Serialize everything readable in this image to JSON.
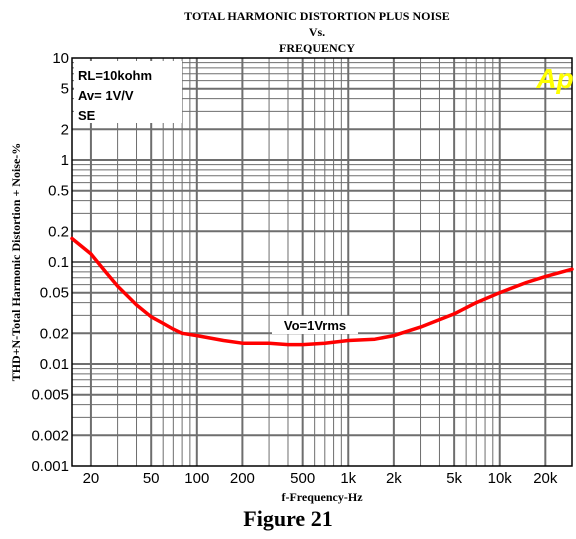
{
  "chart_data": {
    "type": "line",
    "title_lines": [
      "TOTAL HARMONIC DISTORTION PLUS NOISE",
      "Vs.",
      "FREQUENCY"
    ],
    "xlabel": "f-Frequency-Hz",
    "ylabel": "THD+N-Total Harmonic Distortion + Noise-%",
    "x_scale": "log",
    "y_scale": "log",
    "xlim": [
      15,
      30000
    ],
    "ylim": [
      0.001,
      10
    ],
    "grid": true,
    "x_ticks": [
      {
        "value": 20,
        "label": "20"
      },
      {
        "value": 50,
        "label": "50"
      },
      {
        "value": 100,
        "label": "100"
      },
      {
        "value": 200,
        "label": "200"
      },
      {
        "value": 500,
        "label": "500"
      },
      {
        "value": 1000,
        "label": "1k"
      },
      {
        "value": 2000,
        "label": "2k"
      },
      {
        "value": 5000,
        "label": "5k"
      },
      {
        "value": 10000,
        "label": "10k"
      },
      {
        "value": 20000,
        "label": "20k"
      }
    ],
    "y_ticks": [
      {
        "value": 10,
        "label": "10"
      },
      {
        "value": 5,
        "label": "5"
      },
      {
        "value": 2,
        "label": "2"
      },
      {
        "value": 1,
        "label": "1"
      },
      {
        "value": 0.5,
        "label": "0.5"
      },
      {
        "value": 0.2,
        "label": "0.2"
      },
      {
        "value": 0.1,
        "label": "0.1"
      },
      {
        "value": 0.05,
        "label": "0.05"
      },
      {
        "value": 0.02,
        "label": "0.02"
      },
      {
        "value": 0.01,
        "label": "0.01"
      },
      {
        "value": 0.005,
        "label": "0.005"
      },
      {
        "value": 0.002,
        "label": "0.002"
      },
      {
        "value": 0.001,
        "label": "0.001"
      }
    ],
    "conditions": [
      "RL=10kohm",
      "Av= 1V/V",
      "SE"
    ],
    "logo_text": "Ap",
    "series": [
      {
        "name": "Vo=1Vrms",
        "color": "#ff0000",
        "points": [
          [
            15,
            0.17
          ],
          [
            20,
            0.12
          ],
          [
            25,
            0.08
          ],
          [
            30,
            0.058
          ],
          [
            40,
            0.038
          ],
          [
            50,
            0.029
          ],
          [
            60,
            0.025
          ],
          [
            70,
            0.022
          ],
          [
            80,
            0.02
          ],
          [
            100,
            0.019
          ],
          [
            150,
            0.017
          ],
          [
            200,
            0.016
          ],
          [
            300,
            0.016
          ],
          [
            400,
            0.0155
          ],
          [
            500,
            0.0155
          ],
          [
            700,
            0.016
          ],
          [
            1000,
            0.017
          ],
          [
            1500,
            0.0175
          ],
          [
            2000,
            0.019
          ],
          [
            3000,
            0.023
          ],
          [
            5000,
            0.031
          ],
          [
            7000,
            0.04
          ],
          [
            10000,
            0.05
          ],
          [
            15000,
            0.063
          ],
          [
            20000,
            0.072
          ],
          [
            30000,
            0.085
          ]
        ]
      }
    ],
    "annotation": "Vo=1Vrms"
  },
  "figure_caption": "Figure 21",
  "colors": {
    "grid": "#6e6e6e",
    "background": "#ffffff",
    "curve": "#ff0000",
    "logo": "#ffff00"
  }
}
